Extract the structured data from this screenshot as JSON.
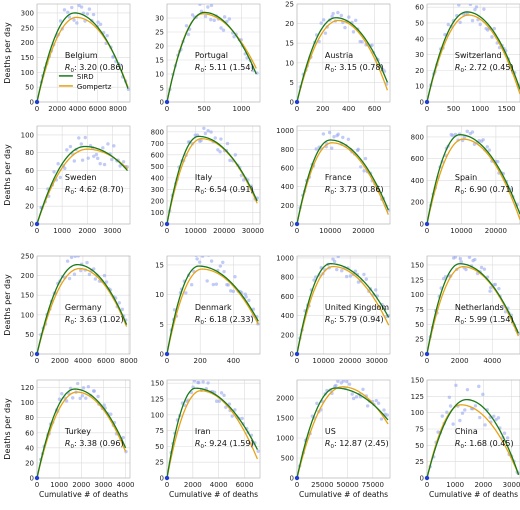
{
  "figure": {
    "ylabel": "Deaths per day",
    "xlabel": "Cumulative # of deaths",
    "legend": [
      "SIRD",
      "Gompertz"
    ],
    "r0_prefix": "R",
    "r0_sub": "0",
    "colors": {
      "sird": "#1a7a1a",
      "gompertz": "#e8a317",
      "points": "#9aa6f2",
      "origin": "#1f3fd0",
      "grid": "#dcdcdc",
      "axis": "#555555"
    }
  },
  "chart_data": [
    {
      "type": "scatter",
      "title": "Belgium",
      "r0": ": 3.20 (0.86)",
      "xlim": [
        0,
        9200
      ],
      "ylim": [
        0,
        330
      ],
      "xticks": [
        0,
        2000,
        4000,
        6000,
        8000
      ],
      "yticks": [
        0,
        50,
        100,
        150,
        200,
        250,
        300
      ],
      "xtick_labels": [
        "0",
        "2000",
        "4000",
        "6000",
        "8000"
      ],
      "ytick_labels": [
        "0",
        "50",
        "100",
        "150",
        "200",
        "250",
        "300"
      ],
      "sird_peak": [
        3700,
        300
      ],
      "gomp_peak": [
        3900,
        285
      ],
      "x_end": 9000,
      "y_end_sird": 45,
      "y_end_gomp": 50,
      "noise": 0.12,
      "legend": true
    },
    {
      "type": "scatter",
      "title": "Portugal",
      "r0": ": 5.11 (1.54)",
      "xlim": [
        0,
        1250
      ],
      "ylim": [
        0,
        35
      ],
      "xticks": [
        0,
        500,
        1000
      ],
      "yticks": [
        0,
        5,
        10,
        15,
        20,
        25,
        30
      ],
      "xtick_labels": [
        "0",
        "500",
        "1000"
      ],
      "ytick_labels": [
        "0",
        "5",
        "10",
        "15",
        "20",
        "25",
        "30"
      ],
      "sird_peak": [
        500,
        32
      ],
      "gomp_peak": [
        480,
        31.5
      ],
      "x_end": 1200,
      "y_end_sird": 10,
      "y_end_gomp": 12,
      "noise": 0.1,
      "legend": false
    },
    {
      "type": "scatter",
      "title": "Austria",
      "r0": ": 3.15 (0.78)",
      "xlim": [
        0,
        720
      ],
      "ylim": [
        0,
        25
      ],
      "xticks": [
        0,
        200,
        400,
        600
      ],
      "yticks": [
        0,
        5,
        10,
        15,
        20,
        25
      ],
      "xtick_labels": [
        "0",
        "200",
        "400",
        "600"
      ],
      "ytick_labels": [
        "0",
        "5",
        "10",
        "15",
        "20",
        "25"
      ],
      "sird_peak": [
        300,
        21.5
      ],
      "gomp_peak": [
        320,
        20.8
      ],
      "x_end": 700,
      "y_end_sird": 5,
      "y_end_gomp": 3,
      "noise": 0.12,
      "legend": false
    },
    {
      "type": "scatter",
      "title": "Switzerland",
      "r0": ": 2.72 (0.45)",
      "xlim": [
        0,
        1750
      ],
      "ylim": [
        0,
        62
      ],
      "xticks": [
        0,
        500,
        1000,
        1500
      ],
      "yticks": [
        0,
        10,
        20,
        30,
        40,
        50,
        60
      ],
      "xtick_labels": [
        "0",
        "500",
        "1000",
        "1500"
      ],
      "ytick_labels": [
        "0",
        "10",
        "20",
        "30",
        "40",
        "50",
        "60"
      ],
      "sird_peak": [
        750,
        57
      ],
      "gomp_peak": [
        780,
        55
      ],
      "x_end": 1750,
      "y_end_sird": 8,
      "y_end_gomp": 5,
      "noise": 0.12,
      "legend": false
    },
    {
      "type": "scatter",
      "title": "Sweden",
      "r0": ": 4.62 (8.70)",
      "xlim": [
        0,
        3700
      ],
      "ylim": [
        0,
        110
      ],
      "xticks": [
        0,
        1000,
        2000,
        3000
      ],
      "yticks": [
        0,
        20,
        40,
        60,
        80,
        100
      ],
      "xtick_labels": [
        "0",
        "1000",
        "2000",
        "3000"
      ],
      "ytick_labels": [
        "0",
        "20",
        "40",
        "60",
        "80",
        "100"
      ],
      "sird_peak": [
        1900,
        87
      ],
      "gomp_peak": [
        2000,
        84
      ],
      "x_end": 3600,
      "y_end_sird": 60,
      "y_end_gomp": 62,
      "noise": 0.2,
      "legend": false
    },
    {
      "type": "scatter",
      "title": "Italy",
      "r0": ": 6.54 (0.91)",
      "xlim": [
        0,
        32500
      ],
      "ylim": [
        0,
        850
      ],
      "xticks": [
        0,
        10000,
        20000,
        30000
      ],
      "yticks": [
        0,
        100,
        200,
        300,
        400,
        500,
        600,
        700,
        800
      ],
      "xtick_labels": [
        "0",
        "10000",
        "20000",
        "30000"
      ],
      "ytick_labels": [
        "0",
        "100",
        "200",
        "300",
        "400",
        "500",
        "600",
        "700",
        "800"
      ],
      "sird_peak": [
        11000,
        760
      ],
      "gomp_peak": [
        12000,
        740
      ],
      "x_end": 31500,
      "y_end_sird": 200,
      "y_end_gomp": 180,
      "noise": 0.1,
      "legend": false
    },
    {
      "type": "scatter",
      "title": "France",
      "r0": ": 3.73 (0.86)",
      "xlim": [
        0,
        28000
      ],
      "ylim": [
        0,
        1050
      ],
      "xticks": [
        0,
        10000,
        20000
      ],
      "yticks": [
        0,
        200,
        400,
        600,
        800,
        1000
      ],
      "xtick_labels": [
        "0",
        "10000",
        "20000"
      ],
      "ytick_labels": [
        "0",
        "200",
        "400",
        "600",
        "800",
        "1000"
      ],
      "sird_peak": [
        10000,
        900
      ],
      "gomp_peak": [
        10500,
        870
      ],
      "x_end": 27500,
      "y_end_sird": 150,
      "y_end_gomp": 100,
      "noise": 0.12,
      "legend": false
    },
    {
      "type": "scatter",
      "title": "Spain",
      "r0": ": 6.90 (0.71)",
      "xlim": [
        0,
        27000
      ],
      "ylim": [
        0,
        900
      ],
      "xticks": [
        0,
        10000,
        20000
      ],
      "yticks": [
        0,
        200,
        400,
        600,
        800
      ],
      "xtick_labels": [
        "0",
        "10000",
        "20000"
      ],
      "ytick_labels": [
        "0",
        "200",
        "400",
        "600",
        "800"
      ],
      "sird_peak": [
        9500,
        820
      ],
      "gomp_peak": [
        10500,
        780
      ],
      "x_end": 27000,
      "y_end_sird": 90,
      "y_end_gomp": 40,
      "noise": 0.08,
      "legend": false
    },
    {
      "type": "scatter",
      "title": "Germany",
      "r0": ": 3.63 (1.02)",
      "xlim": [
        0,
        8100
      ],
      "ylim": [
        0,
        250
      ],
      "xticks": [
        0,
        2000,
        4000,
        6000,
        8000
      ],
      "yticks": [
        0,
        50,
        100,
        150,
        200,
        250
      ],
      "xtick_labels": [
        "0",
        "2000",
        "4000",
        "6000",
        "8000"
      ],
      "ytick_labels": [
        "0",
        "50",
        "100",
        "150",
        "200",
        "250"
      ],
      "sird_peak": [
        3500,
        228
      ],
      "gomp_peak": [
        3700,
        218
      ],
      "x_end": 7800,
      "y_end_sird": 75,
      "y_end_gomp": 70,
      "noise": 0.12,
      "legend": false
    },
    {
      "type": "scatter",
      "title": "Denmark",
      "r0": ": 6.18 (2.33)",
      "xlim": [
        0,
        560
      ],
      "ylim": [
        0,
        16.5
      ],
      "xticks": [
        0,
        200,
        400
      ],
      "yticks": [
        0,
        5,
        10,
        15
      ],
      "xtick_labels": [
        "0",
        "200",
        "400"
      ],
      "ytick_labels": [
        "0",
        "5",
        "10",
        "15"
      ],
      "sird_peak": [
        190,
        14.8
      ],
      "gomp_peak": [
        210,
        14.3
      ],
      "x_end": 550,
      "y_end_sird": 5.5,
      "y_end_gomp": 5,
      "noise": 0.2,
      "legend": false
    },
    {
      "type": "scatter",
      "title": "United Kingdom",
      "r0": ": 5.79 (0.94)",
      "xlim": [
        0,
        35000
      ],
      "ylim": [
        0,
        1020
      ],
      "xticks": [
        0,
        10000,
        20000,
        30000
      ],
      "yticks": [
        0,
        200,
        400,
        600,
        800,
        1000
      ],
      "xtick_labels": [
        "0",
        "10000",
        "20000",
        "30000"
      ],
      "ytick_labels": [
        "0",
        "200",
        "400",
        "600",
        "800",
        "1000"
      ],
      "sird_peak": [
        12500,
        940
      ],
      "gomp_peak": [
        13500,
        910
      ],
      "x_end": 34500,
      "y_end_sird": 380,
      "y_end_gomp": 300,
      "noise": 0.1,
      "legend": false
    },
    {
      "type": "scatter",
      "title": "Netherlands",
      "r0": ": 5.99 (1.54)",
      "xlim": [
        0,
        5700
      ],
      "ylim": [
        0,
        165
      ],
      "xticks": [
        0,
        2000,
        4000
      ],
      "yticks": [
        0,
        25,
        50,
        75,
        100,
        125,
        150
      ],
      "xtick_labels": [
        "0",
        "2000",
        "4000"
      ],
      "ytick_labels": [
        "0",
        "25",
        "50",
        "75",
        "100",
        "125",
        "150"
      ],
      "sird_peak": [
        2000,
        152
      ],
      "gomp_peak": [
        2200,
        147
      ],
      "x_end": 5600,
      "y_end_sird": 35,
      "y_end_gomp": 30,
      "noise": 0.12,
      "legend": false
    },
    {
      "type": "scatter",
      "title": "Turkey",
      "r0": ": 3.38 (0.96)",
      "xlim": [
        0,
        4200
      ],
      "ylim": [
        0,
        130
      ],
      "xticks": [
        0,
        1000,
        2000,
        3000,
        4000
      ],
      "yticks": [
        0,
        20,
        40,
        60,
        80,
        100,
        120
      ],
      "xtick_labels": [
        "0",
        "1000",
        "2000",
        "3000",
        "4000"
      ],
      "ytick_labels": [
        "0",
        "20",
        "40",
        "60",
        "80",
        "100",
        "120"
      ],
      "sird_peak": [
        1700,
        118
      ],
      "gomp_peak": [
        1800,
        114
      ],
      "x_end": 4000,
      "y_end_sird": 40,
      "y_end_gomp": 35,
      "noise": 0.1,
      "legend": false
    },
    {
      "type": "scatter",
      "title": "Iran",
      "r0": ": 9.24 (1.59)",
      "xlim": [
        0,
        7200
      ],
      "ylim": [
        0,
        155
      ],
      "xticks": [
        0,
        2000,
        4000,
        6000
      ],
      "yticks": [
        0,
        25,
        50,
        75,
        100,
        125,
        150
      ],
      "xtick_labels": [
        "0",
        "2000",
        "4000",
        "6000"
      ],
      "ytick_labels": [
        "0",
        "25",
        "50",
        "75",
        "100",
        "125",
        "150"
      ],
      "sird_peak": [
        2200,
        142
      ],
      "gomp_peak": [
        2600,
        138
      ],
      "x_end": 7000,
      "y_end_sird": 45,
      "y_end_gomp": 30,
      "noise": 0.1,
      "legend": false
    },
    {
      "type": "scatter",
      "title": "US",
      "r0": ": 12.87 (2.45)",
      "xlim": [
        0,
        92000
      ],
      "ylim": [
        0,
        2450
      ],
      "xticks": [
        0,
        25000,
        50000,
        75000
      ],
      "yticks": [
        0,
        500,
        1000,
        1500,
        2000
      ],
      "xtick_labels": [
        "0",
        "25000",
        "50000",
        "75000"
      ],
      "ytick_labels": [
        "0",
        "500",
        "1000",
        "1500",
        "2000"
      ],
      "sird_peak": [
        38000,
        2250
      ],
      "gomp_peak": [
        45000,
        2280
      ],
      "x_end": 90000,
      "y_end_sird": 1450,
      "y_end_gomp": 1350,
      "noise": 0.1,
      "legend": false
    },
    {
      "type": "scatter",
      "title": "China",
      "r0": ": 1.68 (0.45)",
      "xlim": [
        0,
        3300
      ],
      "ylim": [
        0,
        150
      ],
      "xticks": [
        0,
        1000,
        2000,
        3000
      ],
      "yticks": [
        0,
        25,
        50,
        75,
        100,
        125,
        150
      ],
      "xtick_labels": [
        "0",
        "1000",
        "2000",
        "3000"
      ],
      "ytick_labels": [
        "0",
        "25",
        "50",
        "75",
        "100",
        "125",
        "150"
      ],
      "sird_peak": [
        1400,
        120
      ],
      "gomp_peak": [
        1200,
        112
      ],
      "x_end": 3250,
      "y_end_sird": 5,
      "y_end_gomp": 5,
      "noise": 0.3,
      "legend": false
    }
  ]
}
